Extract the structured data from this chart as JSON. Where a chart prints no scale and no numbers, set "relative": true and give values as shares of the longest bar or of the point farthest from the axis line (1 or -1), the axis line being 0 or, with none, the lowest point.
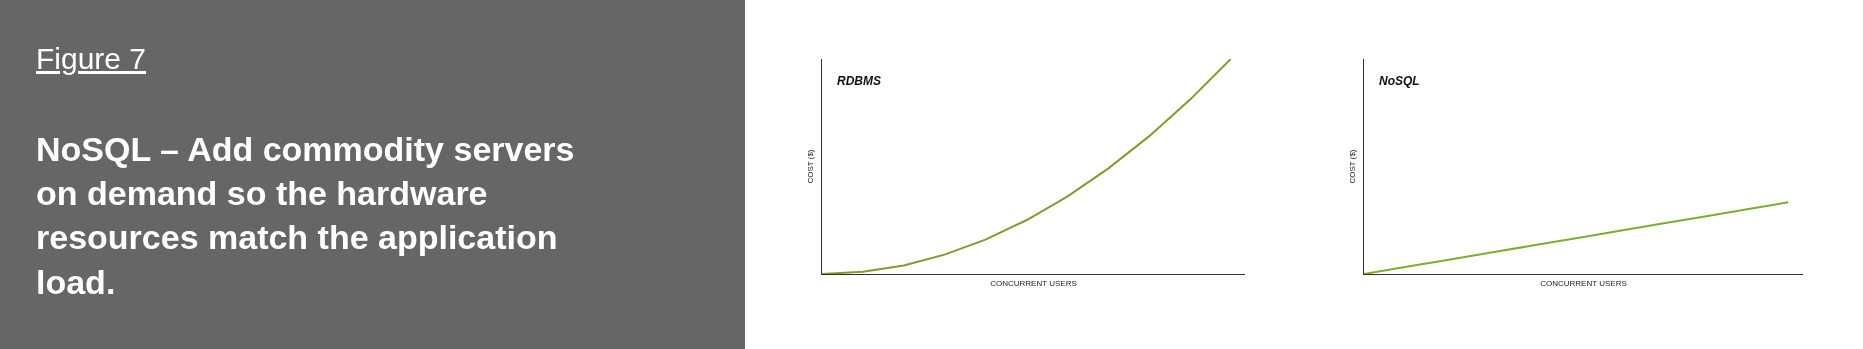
{
  "chart_data": [
    {
      "type": "other",
      "title": "Figure 7",
      "subtitle": "NoSQL – Add commodity servers on demand so the hardware resources match the application load."
    },
    {
      "type": "line",
      "title": "RDBMS",
      "xlabel": "CONCURRENT USERS",
      "ylabel": "COST ($)",
      "relative": true,
      "categories": [
        null,
        null,
        null,
        null,
        null,
        null,
        null,
        null,
        null,
        null,
        null
      ],
      "series": [
        {
          "color": "#8d962c",
          "values": [
            0,
            0.01,
            0.04,
            0.09,
            0.16,
            0.25,
            0.36,
            0.49,
            0.64,
            0.81,
            1
          ]
        }
      ],
      "marker": "none",
      "line_style": "solid",
      "tick_labels": false
    },
    {
      "type": "line",
      "title": "NoSQL",
      "xlabel": "CONCURRENT USERS",
      "ylabel": "COST ($)",
      "relative": true,
      "categories": [
        null,
        null,
        null,
        null,
        null,
        null,
        null,
        null,
        null,
        null,
        null
      ],
      "series": [
        {
          "color": "#7fae2e",
          "values": [
            0,
            0.1,
            0.2,
            0.3,
            0.4,
            0.5,
            0.6,
            0.7,
            0.8,
            0.9,
            1
          ]
        }
      ],
      "marker": "none",
      "line_style": "solid",
      "tick_labels": false
    }
  ]
}
